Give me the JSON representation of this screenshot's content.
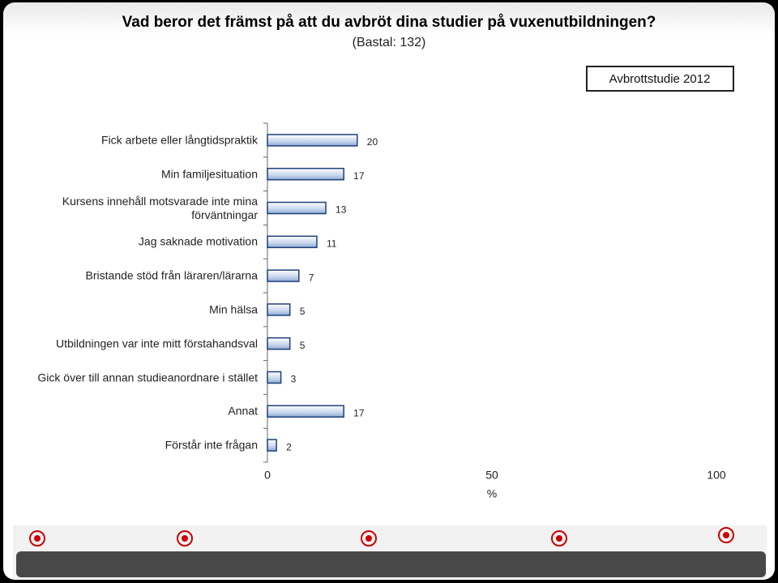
{
  "chart_data": {
    "type": "bar",
    "orientation": "horizontal",
    "title": "Vad beror det främst på att du avbröt dina studier på vuxenutbildningen?",
    "subtitle": "(Bastal: 132)",
    "categories": [
      "Fick arbete eller långtidspraktik",
      "Min familjesituation",
      "Kursens innehåll motsvarade inte mina förväntningar",
      "Jag saknade motivation",
      "Bristande stöd från läraren/lärarna",
      "Min hälsa",
      "Utbildningen var inte mitt förstahandsval",
      "Gick över till annan studieanordnare i stället",
      "Annat",
      "Förstår inte frågan"
    ],
    "series": [
      {
        "name": "Avbrottstudie 2012",
        "color": "#1f3f7a",
        "values": [
          20,
          17,
          13,
          11,
          7,
          5,
          5,
          3,
          17,
          2
        ]
      }
    ],
    "xlim": [
      0,
      100
    ],
    "xticks": [
      0,
      50,
      100
    ],
    "xlabel": "%",
    "legend": "top-right"
  }
}
